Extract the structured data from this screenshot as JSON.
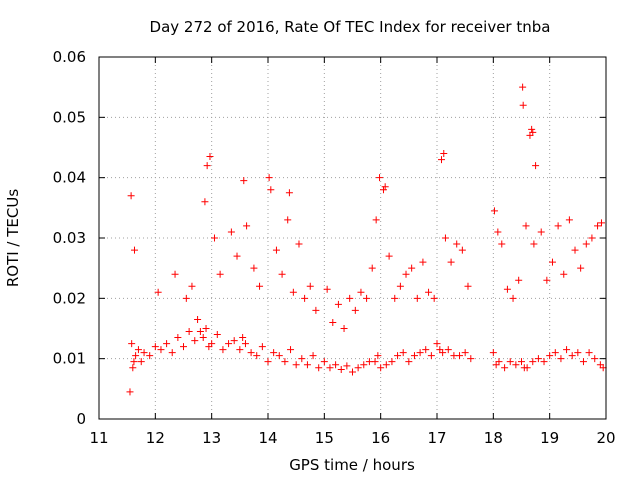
{
  "chart_data": {
    "type": "scatter",
    "title": "Day 272 of 2016, Rate Of TEC Index for receiver tnba",
    "xlabel": "GPS time / hours",
    "ylabel": "ROTI / TECUs",
    "xlim": [
      11,
      20
    ],
    "ylim": [
      0,
      0.06
    ],
    "xticks": [
      "11",
      "12",
      "13",
      "14",
      "15",
      "16",
      "17",
      "18",
      "19",
      "20"
    ],
    "yticks": [
      "0",
      "0.01",
      "0.02",
      "0.03",
      "0.04",
      "0.05",
      "0.06"
    ],
    "grid": true,
    "marker": "+",
    "color": "#ff0000",
    "series": [
      {
        "name": "ROTI",
        "x": [
          11.55,
          11.58,
          11.6,
          11.62,
          11.65,
          11.7,
          11.75,
          11.8,
          11.9,
          12.0,
          12.1,
          12.2,
          12.3,
          12.4,
          12.5,
          12.6,
          12.7,
          12.75,
          12.8,
          12.85,
          12.9,
          12.95,
          13.0,
          13.1,
          13.2,
          13.3,
          13.4,
          13.5,
          13.55,
          13.6,
          13.7,
          13.8,
          13.9,
          14.0,
          14.1,
          14.2,
          14.3,
          14.4,
          14.5,
          14.6,
          14.7,
          14.8,
          14.9,
          15.0,
          15.1,
          15.2,
          15.3,
          15.4,
          15.5,
          15.6,
          15.7,
          15.8,
          15.9,
          15.95,
          16.0,
          16.1,
          16.2,
          16.3,
          16.4,
          16.5,
          16.6,
          16.7,
          16.8,
          16.9,
          17.0,
          17.05,
          17.1,
          17.2,
          17.3,
          17.4,
          17.5,
          17.6,
          18.0,
          18.05,
          18.1,
          18.2,
          18.3,
          18.4,
          18.5,
          18.55,
          18.6,
          18.7,
          18.8,
          18.9,
          19.0,
          19.1,
          19.2,
          19.3,
          19.4,
          19.5,
          19.6,
          19.7,
          19.8,
          19.9,
          19.95,
          11.57,
          11.63,
          12.05,
          12.35,
          12.55,
          12.65,
          12.92,
          13.05,
          13.15,
          13.35,
          13.45,
          13.62,
          13.75,
          13.85,
          14.05,
          14.15,
          14.25,
          14.35,
          14.45,
          14.55,
          14.65,
          14.75,
          14.85,
          15.05,
          15.15,
          15.25,
          15.35,
          15.45,
          15.55,
          15.65,
          15.75,
          15.85,
          15.92,
          16.05,
          16.15,
          16.25,
          16.35,
          16.45,
          16.55,
          16.65,
          16.75,
          16.85,
          16.95,
          17.08,
          17.15,
          17.25,
          17.35,
          17.45,
          17.55,
          18.02,
          18.08,
          18.15,
          18.25,
          18.35,
          18.45,
          18.52,
          18.58,
          18.65,
          18.72,
          18.75,
          18.85,
          18.95,
          19.05,
          19.15,
          19.25,
          19.35,
          19.45,
          19.55,
          19.65,
          19.75,
          19.85,
          19.92,
          12.88,
          12.97,
          13.57,
          14.02,
          14.38,
          15.98,
          16.08,
          17.12,
          18.53,
          18.68,
          18.7
        ],
        "y": [
          0.0045,
          0.0125,
          0.0085,
          0.0095,
          0.0105,
          0.0115,
          0.0095,
          0.011,
          0.0105,
          0.012,
          0.0115,
          0.0125,
          0.011,
          0.0135,
          0.012,
          0.0145,
          0.013,
          0.0165,
          0.0145,
          0.0135,
          0.015,
          0.012,
          0.0125,
          0.014,
          0.0115,
          0.0125,
          0.013,
          0.0115,
          0.0135,
          0.0125,
          0.011,
          0.0105,
          0.012,
          0.0095,
          0.011,
          0.0105,
          0.0095,
          0.0115,
          0.009,
          0.01,
          0.009,
          0.0105,
          0.0085,
          0.0095,
          0.0085,
          0.009,
          0.0082,
          0.0088,
          0.0078,
          0.0085,
          0.009,
          0.0095,
          0.0095,
          0.0105,
          0.0085,
          0.009,
          0.0095,
          0.0105,
          0.011,
          0.0095,
          0.0105,
          0.011,
          0.0115,
          0.0105,
          0.0125,
          0.0115,
          0.011,
          0.0115,
          0.0105,
          0.0105,
          0.011,
          0.01,
          0.011,
          0.009,
          0.0095,
          0.0085,
          0.0095,
          0.009,
          0.0095,
          0.0085,
          0.0085,
          0.0095,
          0.01,
          0.0095,
          0.0105,
          0.011,
          0.01,
          0.0115,
          0.0105,
          0.011,
          0.0095,
          0.011,
          0.01,
          0.009,
          0.0085,
          0.037,
          0.028,
          0.021,
          0.024,
          0.02,
          0.022,
          0.042,
          0.03,
          0.024,
          0.031,
          0.027,
          0.032,
          0.025,
          0.022,
          0.038,
          0.028,
          0.024,
          0.033,
          0.021,
          0.029,
          0.02,
          0.022,
          0.018,
          0.0215,
          0.016,
          0.019,
          0.015,
          0.02,
          0.018,
          0.021,
          0.02,
          0.025,
          0.033,
          0.038,
          0.027,
          0.02,
          0.022,
          0.024,
          0.025,
          0.02,
          0.026,
          0.021,
          0.02,
          0.043,
          0.03,
          0.026,
          0.029,
          0.028,
          0.022,
          0.0345,
          0.031,
          0.029,
          0.0215,
          0.02,
          0.023,
          0.055,
          0.032,
          0.047,
          0.029,
          0.042,
          0.031,
          0.023,
          0.026,
          0.032,
          0.024,
          0.033,
          0.028,
          0.025,
          0.029,
          0.03,
          0.032,
          0.0325,
          0.036,
          0.0435,
          0.0395,
          0.04,
          0.0375,
          0.04,
          0.0385,
          0.044,
          0.052,
          0.048,
          0.0475
        ]
      }
    ]
  }
}
